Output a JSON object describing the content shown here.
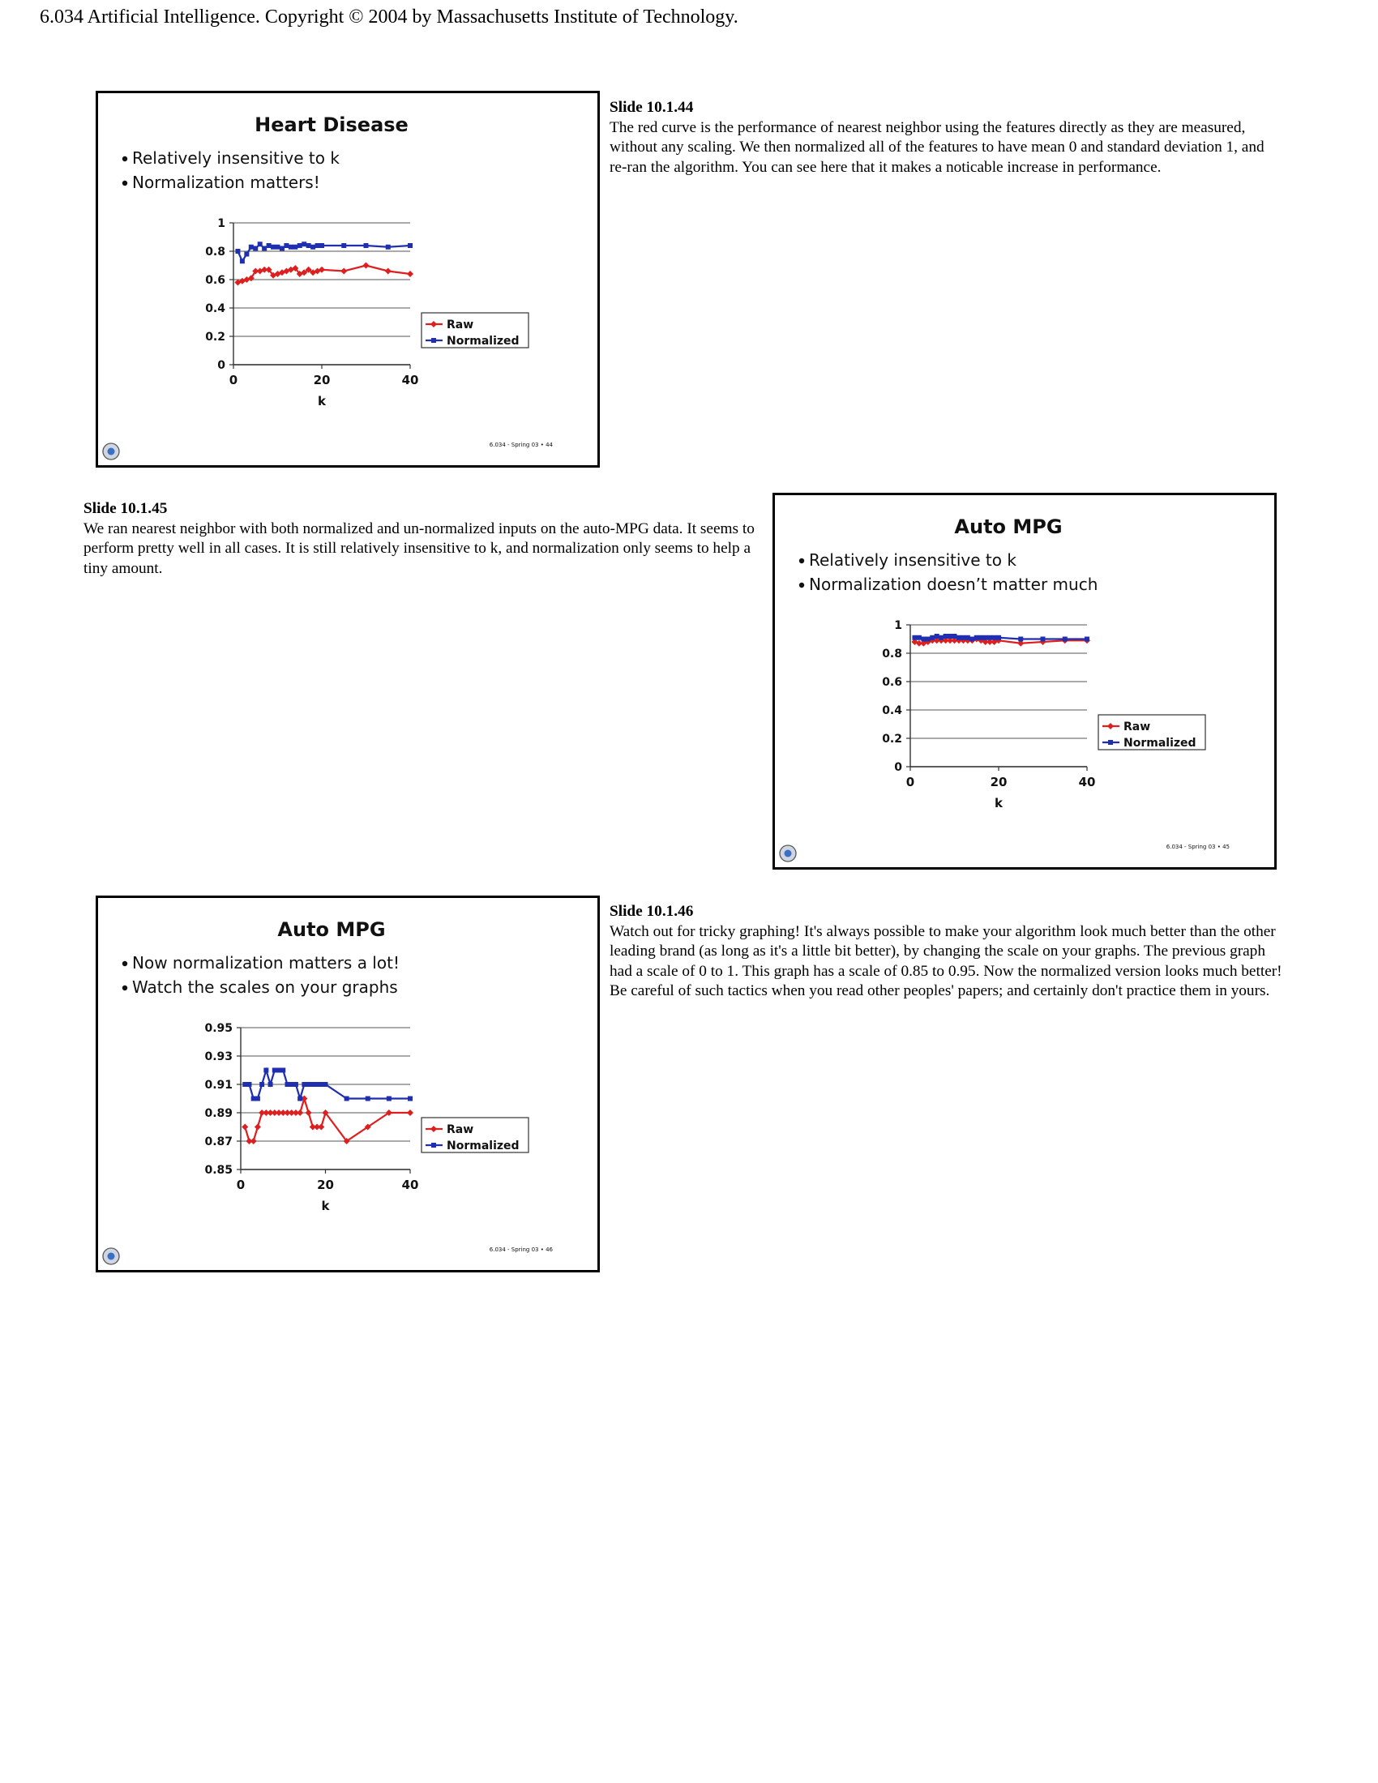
{
  "header": {
    "text": "6.034 Artificial Intelligence. Copyright © 2004 by Massachusetts Institute of Technology."
  },
  "slides": [
    {
      "number_label": "Slide 10.1.44",
      "note": "The red curve is the performance of nearest neighbor using the features directly as they are measured, without any scaling. We then normalized all of the features to have mean 0 and standard deviation 1, and re-ran the algorithm. You can see here that it makes a noticable increase in performance.",
      "title": "Heart Disease",
      "bullets": [
        "Relatively insensitive to k",
        "Normalization matters!"
      ],
      "footer": "6.034 - Spring 03  •  44",
      "legend": [
        "Raw",
        "Normalized"
      ]
    },
    {
      "number_label": "Slide 10.1.45",
      "note": "We ran nearest neighbor with both normalized and un-normalized inputs on the auto-MPG data. It seems to perform pretty well in all cases. It is still relatively insensitive to k, and normalization only seems to help a tiny amount.",
      "title": "Auto MPG",
      "bullets": [
        "Relatively insensitive to k",
        "Normalization doesn’t matter much"
      ],
      "footer": "6.034 - Spring 03  •  45",
      "legend": [
        "Raw",
        "Normalized"
      ]
    },
    {
      "number_label": "Slide 10.1.46",
      "note": "Watch out for tricky graphing! It's always possible to make your algorithm look much better than the other leading brand (as long as it's a little bit better), by changing the scale on your graphs. The previous graph had a scale of 0 to 1. This graph has a scale of 0.85 to 0.95. Now the normalized version looks much better! Be careful of such tactics when you read other peoples' papers; and certainly don't practice them in yours.",
      "title": "Auto MPG",
      "bullets": [
        "Now normalization matters a lot!",
        "Watch the scales on your graphs"
      ],
      "footer": "6.034 - Spring 03  •  46",
      "legend": [
        "Raw",
        "Normalized"
      ]
    }
  ],
  "chart_data": [
    {
      "type": "line",
      "xlabel": "k",
      "ylabel": "",
      "xlim": [
        0,
        40
      ],
      "ylim": [
        0,
        1
      ],
      "xticks": [
        0,
        20,
        40
      ],
      "yticks": [
        0,
        0.2,
        0.4,
        0.6,
        0.8,
        1
      ],
      "ytick_labels": [
        "0",
        "0.2",
        "0.4",
        "0.6",
        "0.8",
        "1"
      ],
      "grid": true,
      "legend_position": "right",
      "series": [
        {
          "name": "Raw",
          "color": "#dd1f1f",
          "x": [
            1,
            2,
            3,
            4,
            5,
            6,
            7,
            8,
            9,
            10,
            11,
            12,
            13,
            14,
            15,
            16,
            17,
            18,
            19,
            20,
            25,
            30,
            35,
            40
          ],
          "y": [
            0.58,
            0.59,
            0.6,
            0.61,
            0.66,
            0.66,
            0.67,
            0.67,
            0.63,
            0.64,
            0.65,
            0.66,
            0.67,
            0.68,
            0.64,
            0.65,
            0.67,
            0.65,
            0.66,
            0.67,
            0.66,
            0.7,
            0.66,
            0.64
          ]
        },
        {
          "name": "Normalized",
          "color": "#1f2fb0",
          "x": [
            1,
            2,
            3,
            4,
            5,
            6,
            7,
            8,
            9,
            10,
            11,
            12,
            13,
            14,
            15,
            16,
            17,
            18,
            19,
            20,
            25,
            30,
            35,
            40
          ],
          "y": [
            0.8,
            0.73,
            0.78,
            0.83,
            0.82,
            0.85,
            0.82,
            0.84,
            0.83,
            0.83,
            0.82,
            0.84,
            0.83,
            0.83,
            0.84,
            0.85,
            0.84,
            0.83,
            0.84,
            0.84,
            0.84,
            0.84,
            0.83,
            0.84
          ]
        }
      ]
    },
    {
      "type": "line",
      "xlabel": "k",
      "ylabel": "",
      "xlim": [
        0,
        40
      ],
      "ylim": [
        0,
        1
      ],
      "xticks": [
        0,
        20,
        40
      ],
      "yticks": [
        0,
        0.2,
        0.4,
        0.6,
        0.8,
        1
      ],
      "ytick_labels": [
        "0",
        "0.2",
        "0.4",
        "0.6",
        "0.8",
        "1"
      ],
      "grid": true,
      "legend_position": "right",
      "series": [
        {
          "name": "Raw",
          "color": "#dd1f1f",
          "x": [
            1,
            2,
            3,
            4,
            5,
            6,
            7,
            8,
            9,
            10,
            11,
            12,
            13,
            14,
            15,
            16,
            17,
            18,
            19,
            20,
            25,
            30,
            35,
            40
          ],
          "y": [
            0.88,
            0.87,
            0.87,
            0.88,
            0.89,
            0.89,
            0.89,
            0.89,
            0.89,
            0.89,
            0.89,
            0.89,
            0.89,
            0.89,
            0.9,
            0.89,
            0.88,
            0.88,
            0.88,
            0.89,
            0.87,
            0.88,
            0.89,
            0.89
          ]
        },
        {
          "name": "Normalized",
          "color": "#1f2fb0",
          "x": [
            1,
            2,
            3,
            4,
            5,
            6,
            7,
            8,
            9,
            10,
            11,
            12,
            13,
            14,
            15,
            16,
            17,
            18,
            19,
            20,
            25,
            30,
            35,
            40
          ],
          "y": [
            0.91,
            0.91,
            0.9,
            0.9,
            0.91,
            0.92,
            0.91,
            0.92,
            0.92,
            0.92,
            0.91,
            0.91,
            0.91,
            0.9,
            0.91,
            0.91,
            0.91,
            0.91,
            0.91,
            0.91,
            0.9,
            0.9,
            0.9,
            0.9
          ]
        }
      ]
    },
    {
      "type": "line",
      "xlabel": "k",
      "ylabel": "",
      "xlim": [
        0,
        40
      ],
      "ylim": [
        0.85,
        0.95
      ],
      "xticks": [
        0,
        20,
        40
      ],
      "yticks": [
        0.85,
        0.87,
        0.89,
        0.91,
        0.93,
        0.95
      ],
      "ytick_labels": [
        "0.85",
        "0.87",
        "0.89",
        "0.91",
        "0.93",
        "0.95"
      ],
      "grid": true,
      "legend_position": "right",
      "series": [
        {
          "name": "Raw",
          "color": "#dd1f1f",
          "x": [
            1,
            2,
            3,
            4,
            5,
            6,
            7,
            8,
            9,
            10,
            11,
            12,
            13,
            14,
            15,
            16,
            17,
            18,
            19,
            20,
            25,
            30,
            35,
            40
          ],
          "y": [
            0.88,
            0.87,
            0.87,
            0.88,
            0.89,
            0.89,
            0.89,
            0.89,
            0.89,
            0.89,
            0.89,
            0.89,
            0.89,
            0.89,
            0.9,
            0.89,
            0.88,
            0.88,
            0.88,
            0.89,
            0.87,
            0.88,
            0.89,
            0.89
          ]
        },
        {
          "name": "Normalized",
          "color": "#1f2fb0",
          "x": [
            1,
            2,
            3,
            4,
            5,
            6,
            7,
            8,
            9,
            10,
            11,
            12,
            13,
            14,
            15,
            16,
            17,
            18,
            19,
            20,
            25,
            30,
            35,
            40
          ],
          "y": [
            0.91,
            0.91,
            0.9,
            0.9,
            0.91,
            0.92,
            0.91,
            0.92,
            0.92,
            0.92,
            0.91,
            0.91,
            0.91,
            0.9,
            0.91,
            0.91,
            0.91,
            0.91,
            0.91,
            0.91,
            0.9,
            0.9,
            0.9,
            0.9
          ]
        }
      ]
    }
  ]
}
